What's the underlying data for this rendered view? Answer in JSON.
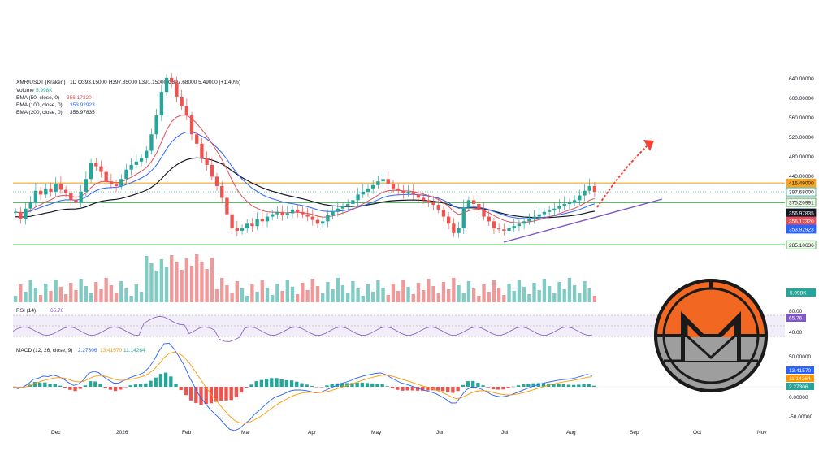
{
  "legend": {
    "pair": "XMR/USDT (Kraken)",
    "timeframe": "1D",
    "ohlc": "O393.15000 H397.85000 L391.15000 C397.68000 5.49000 (+1.40%)",
    "volume_label": "Volume",
    "volume_value": "5.998K",
    "ema50_label": "EMA (50, close, 0)",
    "ema50_value": "356.17320",
    "ema100_label": "EMA (100, close, 0)",
    "ema100_value": "353.92923",
    "ema200_label": "EMA (200, close, 0)",
    "ema200_value": "356.97835"
  },
  "rsi": {
    "label": "RSI (14)",
    "value": "65.76",
    "levels": [
      "80.00",
      "40.00"
    ]
  },
  "macd": {
    "label": "MACD (12, 26, close, 9)",
    "v1": "2.27306",
    "v2": "13.41570",
    "v3": "11.14264",
    "ticks": [
      "50.00000",
      "0.00000",
      "-50.00000"
    ]
  },
  "colors": {
    "up": "#26a69a",
    "down": "#ef5350",
    "ema50": "#e0505a",
    "ema100": "#2962ff",
    "ema200": "#131722",
    "resistance": "#f5a623",
    "support": "#2e9e3e",
    "trendline": "#7e57c2",
    "arrow": "#f44336",
    "rsi": "#7e57c2",
    "macd": "#2962ff",
    "signal": "#ff9800",
    "logo_orange": "#f26822",
    "logo_gray": "#9e9e9e"
  },
  "logo": {
    "icon": "monero-logo-icon"
  },
  "chart_data": {
    "type": "candlestick",
    "x_ticks": [
      "Dec",
      "2026",
      "Feb",
      "Mar",
      "Apr",
      "May",
      "Jun",
      "Jul",
      "Aug",
      "Sep",
      "Oct",
      "Nov"
    ],
    "y_ticks": [
      "640.00000",
      "600.00000",
      "560.00000",
      "520.00000",
      "480.00000",
      "440.00000"
    ],
    "y_range": [
      270,
      650
    ],
    "horizontal_levels": [
      {
        "value": 416.49,
        "label": "416.49000",
        "color": "#f5a623"
      },
      {
        "value": 375.20991,
        "label": "375.20991",
        "color": "#2e9e3e"
      },
      {
        "value": 285.10636,
        "label": "285.10636",
        "color": "#2e9e3e"
      }
    ],
    "price_tags": [
      {
        "value": 397.68,
        "label": "397.68000",
        "style": "price"
      },
      {
        "value": 356.97835,
        "label": "356.97835",
        "style": "ema200"
      },
      {
        "value": 356.1732,
        "label": "356.17320",
        "style": "ema50"
      },
      {
        "value": 353.92923,
        "label": "353.92923",
        "style": "ema100"
      }
    ],
    "close_series": [
      355,
      340,
      362,
      375,
      400,
      392,
      405,
      398,
      415,
      402,
      395,
      380,
      375,
      398,
      425,
      460,
      452,
      440,
      420,
      415,
      410,
      425,
      445,
      455,
      462,
      470,
      485,
      520,
      560,
      610,
      640,
      630,
      600,
      580,
      560,
      520,
      500,
      470,
      455,
      430,
      410,
      385,
      350,
      320,
      315,
      320,
      330,
      325,
      340,
      335,
      345,
      350,
      355,
      348,
      352,
      360,
      355,
      350,
      345,
      338,
      330,
      335,
      348,
      355,
      362,
      368,
      372,
      380,
      392,
      398,
      405,
      412,
      420,
      425,
      415,
      405,
      400,
      395,
      398,
      392,
      385,
      380,
      375,
      370,
      360,
      345,
      330,
      310,
      320,
      365,
      380,
      372,
      360,
      345,
      335,
      320,
      318,
      315,
      320,
      325,
      330,
      335,
      340,
      345,
      350,
      355,
      358,
      362,
      368,
      372,
      375,
      380,
      390,
      400,
      410,
      397.68
    ],
    "volume_range": [
      0,
      100
    ]
  }
}
